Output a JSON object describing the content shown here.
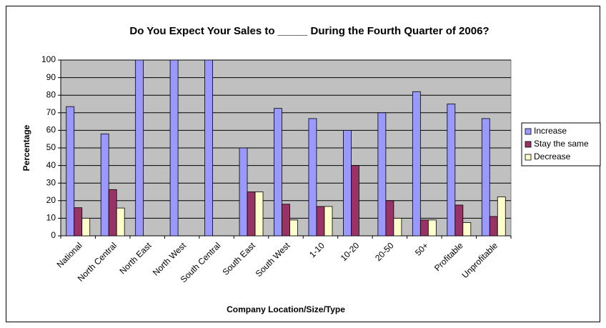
{
  "chart_data": {
    "type": "bar",
    "title": "Do You Expect Your Sales to _____ During the Fourth Quarter of 2006?",
    "x_label": "Company Location/Size/Type",
    "y_label": "Percentage",
    "categories": [
      "National",
      "North Central",
      "North East",
      "North West",
      "South Central",
      "South East",
      "South West",
      "1-10",
      "10-20",
      "20-50",
      "50+",
      "Profitable",
      "Unprofitable"
    ],
    "series": [
      {
        "name": "Increase",
        "color": "#9999ff",
        "values": [
          73.5,
          58,
          100,
          100,
          100,
          50,
          72.5,
          66.7,
          60,
          70,
          82,
          75,
          66.7
        ]
      },
      {
        "name": "Stay the same",
        "color": "#993366",
        "values": [
          16,
          26.3,
          0,
          0,
          0,
          25,
          18,
          16.7,
          40,
          20,
          9,
          17.5,
          11
        ]
      },
      {
        "name": "Decrease",
        "color": "#ffffcc",
        "values": [
          10,
          15.8,
          0,
          0,
          0,
          25,
          9,
          16.7,
          0,
          10,
          9,
          7.5,
          22.2
        ]
      }
    ],
    "ylim": [
      0,
      100
    ],
    "yticks": [
      0,
      10,
      20,
      30,
      40,
      50,
      60,
      70,
      80,
      90,
      100
    ],
    "grid": true,
    "legend": "right"
  }
}
